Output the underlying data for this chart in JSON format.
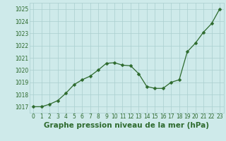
{
  "x": [
    0,
    1,
    2,
    3,
    4,
    5,
    6,
    7,
    8,
    9,
    10,
    11,
    12,
    13,
    14,
    15,
    16,
    17,
    18,
    19,
    20,
    21,
    22,
    23
  ],
  "y": [
    1017.0,
    1017.0,
    1017.2,
    1017.5,
    1018.1,
    1018.8,
    1019.2,
    1019.5,
    1020.0,
    1020.55,
    1020.6,
    1020.4,
    1020.35,
    1019.7,
    1018.65,
    1018.5,
    1018.5,
    1019.0,
    1019.2,
    1021.5,
    1022.2,
    1023.1,
    1023.8,
    1025.0
  ],
  "line_color": "#2d6a2d",
  "marker": "D",
  "marker_size": 2.5,
  "bg_color": "#ceeaea",
  "grid_color": "#aacece",
  "ylabel_ticks": [
    1017,
    1018,
    1019,
    1020,
    1021,
    1022,
    1023,
    1024,
    1025
  ],
  "xlabel_ticks": [
    0,
    1,
    2,
    3,
    4,
    5,
    6,
    7,
    8,
    9,
    10,
    11,
    12,
    13,
    14,
    15,
    16,
    17,
    18,
    19,
    20,
    21,
    22,
    23
  ],
  "ylim": [
    1016.5,
    1025.5
  ],
  "xlim": [
    -0.5,
    23.5
  ],
  "xlabel": "Graphe pression niveau de la mer (hPa)",
  "xlabel_fontsize": 7.5,
  "tick_fontsize": 5.5
}
